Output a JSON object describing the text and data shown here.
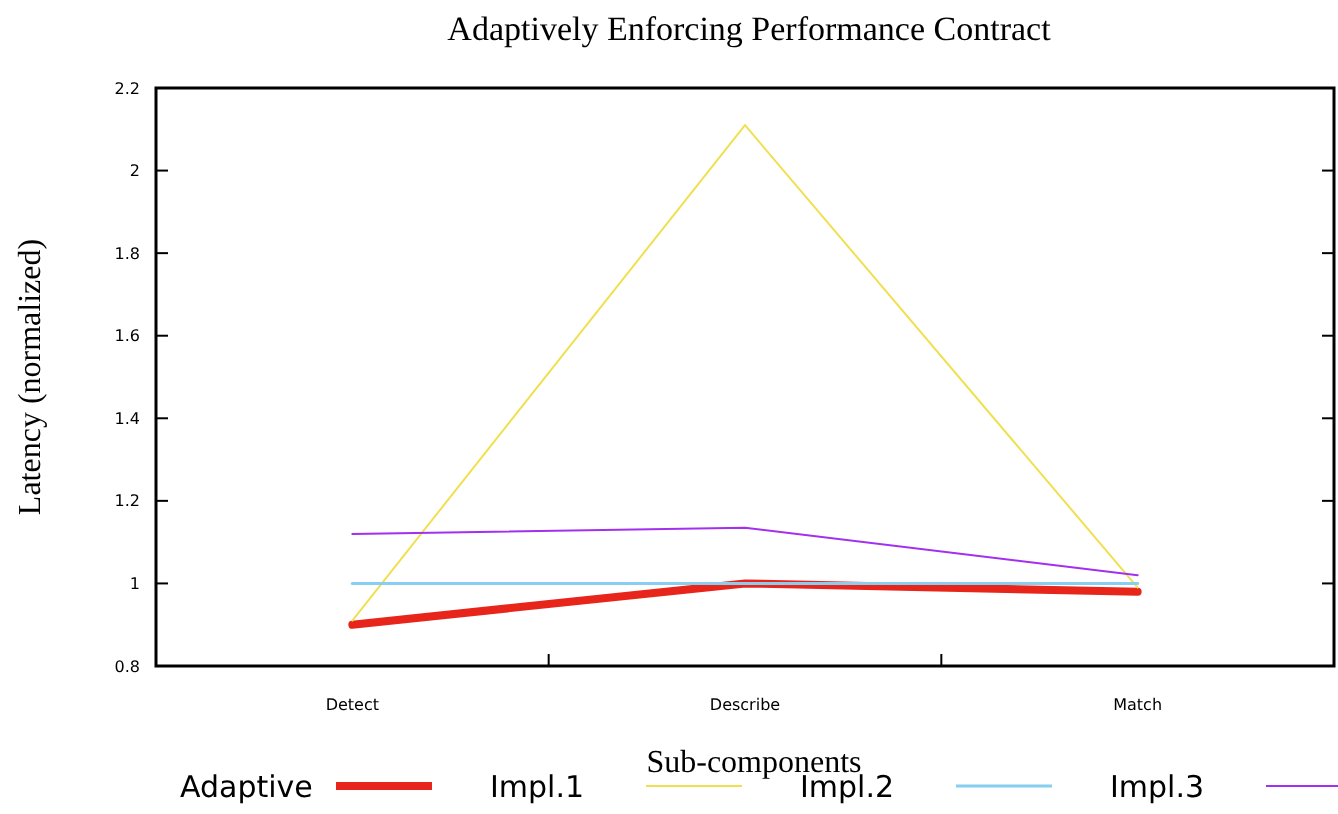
{
  "chart_data": {
    "type": "line",
    "title": "Adaptively Enforcing Performance Contract",
    "xlabel": "Sub-components",
    "ylabel": "Latency (normalized)",
    "categories": [
      "Detect",
      "Describe",
      "Match"
    ],
    "series": [
      {
        "name": "Adaptive",
        "color": "#e8251a",
        "values": [
          0.9,
          1.0,
          0.98
        ]
      },
      {
        "name": "Impl.1",
        "color": "#f0e050",
        "values": [
          0.91,
          2.11,
          0.99
        ]
      },
      {
        "name": "Impl.2",
        "color": "#87cef0",
        "values": [
          1.0,
          1.0,
          1.0
        ]
      },
      {
        "name": "Impl.3",
        "color": "#a32ff0",
        "values": [
          1.12,
          1.135,
          1.02
        ]
      }
    ],
    "ylim": [
      0.8,
      2.2
    ],
    "yticks": [
      0.8,
      1,
      1.2,
      1.4,
      1.6,
      1.8,
      2,
      2.2
    ],
    "grid": false,
    "legend": "bottom",
    "marker": "none",
    "line_style": "solid"
  }
}
